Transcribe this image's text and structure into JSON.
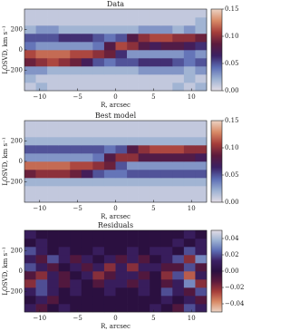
{
  "chart_data": [
    {
      "type": "heatmap",
      "title": "Data",
      "xlabel": "R, arcsec",
      "ylabel": "LOSVD, km s⁻¹",
      "xlim": [
        -12,
        12
      ],
      "ylim": [
        -400,
        400
      ],
      "xticks": [
        {
          "value": -10,
          "label": "−10"
        },
        {
          "value": -5,
          "label": "−5"
        },
        0,
        5,
        10
      ],
      "yticks": [
        {
          "value": -200,
          "label": "−200"
        },
        0,
        200
      ],
      "xbins": [
        -12,
        -10.5,
        -9,
        -7.5,
        -6,
        -4.5,
        -3,
        -1.5,
        0,
        1.5,
        3,
        4.5,
        6,
        7.5,
        9,
        10.5,
        12
      ],
      "ybins": [
        -400,
        -320,
        -240,
        -160,
        -80,
        0,
        80,
        160,
        240,
        320,
        400
      ],
      "z": [
        [
          0.01,
          0.02,
          0.01,
          0.01,
          0.01,
          0.01,
          0.01,
          0.01,
          0.01,
          0.01,
          0.01,
          0.01,
          0.01,
          0.02,
          0.01,
          0.02
        ],
        [
          0.02,
          0.01,
          0.01,
          0.01,
          0.01,
          0.01,
          0.01,
          0.01,
          0.01,
          0.01,
          0.01,
          0.01,
          0.01,
          0.01,
          0.02,
          0.01
        ],
        [
          0.03,
          0.03,
          0.02,
          0.02,
          0.02,
          0.02,
          0.02,
          0.02,
          0.02,
          0.02,
          0.03,
          0.03,
          0.03,
          0.03,
          0.02,
          0.03
        ],
        [
          0.09,
          0.1,
          0.11,
          0.1,
          0.09,
          0.07,
          0.05,
          0.04,
          0.05,
          0.05,
          0.06,
          0.06,
          0.06,
          0.05,
          0.04,
          0.05
        ],
        [
          0.11,
          0.12,
          0.12,
          0.12,
          0.11,
          0.11,
          0.1,
          0.09,
          0.06,
          0.03,
          0.03,
          0.03,
          0.03,
          0.03,
          0.04,
          0.03
        ],
        [
          0.04,
          0.03,
          0.03,
          0.03,
          0.03,
          0.03,
          0.04,
          0.08,
          0.11,
          0.1,
          0.08,
          0.07,
          0.08,
          0.08,
          0.07,
          0.06
        ],
        [
          0.05,
          0.05,
          0.05,
          0.06,
          0.06,
          0.06,
          0.05,
          0.04,
          0.05,
          0.08,
          0.1,
          0.11,
          0.11,
          0.1,
          0.1,
          0.09
        ],
        [
          0.02,
          0.03,
          0.03,
          0.02,
          0.02,
          0.02,
          0.02,
          0.02,
          0.02,
          0.02,
          0.03,
          0.03,
          0.03,
          0.02,
          0.03,
          0.02
        ],
        [
          0.01,
          0.01,
          0.01,
          0.01,
          0.01,
          0.01,
          0.01,
          0.01,
          0.01,
          0.01,
          0.01,
          0.01,
          0.01,
          0.01,
          0.01,
          0.02
        ],
        [
          0.01,
          0.01,
          0.01,
          0.01,
          0.01,
          0.01,
          0.01,
          0.01,
          0.01,
          0.01,
          0.01,
          0.01,
          0.01,
          0.01,
          0.01,
          0.01
        ]
      ],
      "clim": [
        0,
        0.15
      ],
      "cticks": [
        {
          "value": 0,
          "label": "0.00"
        },
        {
          "value": 0.05,
          "label": "0.05"
        },
        {
          "value": 0.1,
          "label": "0.10"
        },
        {
          "value": 0.15,
          "label": "0.15"
        }
      ],
      "colors": [
        "#e3dde6",
        "#9cb1d2",
        "#5c6cb4",
        "#3b2063",
        "#5b1a3d",
        "#a53d3a",
        "#d88a66",
        "#ecd3c4"
      ]
    },
    {
      "type": "heatmap",
      "title": "Best model",
      "xlabel": "R, arcsec",
      "ylabel": "LOSVD, km s⁻¹",
      "xlim": [
        -12,
        12
      ],
      "ylim": [
        -400,
        400
      ],
      "xticks": [
        {
          "value": -10,
          "label": "−10"
        },
        {
          "value": -5,
          "label": "−5"
        },
        0,
        5,
        10
      ],
      "yticks": [
        {
          "value": -200,
          "label": "−200"
        },
        0,
        200
      ],
      "xbins": [
        -12,
        -10.5,
        -9,
        -7.5,
        -6,
        -4.5,
        -3,
        -1.5,
        0,
        1.5,
        3,
        4.5,
        6,
        7.5,
        9,
        10.5,
        12
      ],
      "ybins": [
        -400,
        -320,
        -240,
        -160,
        -80,
        0,
        80,
        160,
        240,
        320,
        400
      ],
      "z": [
        [
          0.01,
          0.01,
          0.01,
          0.01,
          0.01,
          0.01,
          0.01,
          0.01,
          0.01,
          0.01,
          0.01,
          0.01,
          0.01,
          0.01,
          0.01,
          0.01
        ],
        [
          0.01,
          0.01,
          0.01,
          0.01,
          0.01,
          0.01,
          0.01,
          0.01,
          0.01,
          0.01,
          0.01,
          0.01,
          0.01,
          0.01,
          0.01,
          0.01
        ],
        [
          0.02,
          0.02,
          0.02,
          0.02,
          0.02,
          0.02,
          0.02,
          0.02,
          0.02,
          0.02,
          0.02,
          0.02,
          0.02,
          0.02,
          0.02,
          0.02
        ],
        [
          0.09,
          0.1,
          0.1,
          0.1,
          0.09,
          0.07,
          0.05,
          0.04,
          0.04,
          0.05,
          0.05,
          0.05,
          0.05,
          0.05,
          0.05,
          0.05
        ],
        [
          0.12,
          0.12,
          0.12,
          0.12,
          0.11,
          0.11,
          0.1,
          0.09,
          0.05,
          0.03,
          0.03,
          0.03,
          0.03,
          0.03,
          0.03,
          0.03
        ],
        [
          0.03,
          0.03,
          0.03,
          0.03,
          0.03,
          0.03,
          0.04,
          0.08,
          0.1,
          0.1,
          0.08,
          0.08,
          0.08,
          0.08,
          0.08,
          0.07
        ],
        [
          0.05,
          0.05,
          0.05,
          0.05,
          0.05,
          0.05,
          0.05,
          0.04,
          0.05,
          0.08,
          0.1,
          0.11,
          0.11,
          0.11,
          0.1,
          0.1
        ],
        [
          0.02,
          0.02,
          0.02,
          0.02,
          0.02,
          0.02,
          0.02,
          0.02,
          0.02,
          0.02,
          0.02,
          0.02,
          0.02,
          0.02,
          0.02,
          0.02
        ],
        [
          0.01,
          0.01,
          0.01,
          0.01,
          0.01,
          0.01,
          0.01,
          0.01,
          0.01,
          0.01,
          0.01,
          0.01,
          0.01,
          0.01,
          0.01,
          0.01
        ],
        [
          0.01,
          0.01,
          0.01,
          0.01,
          0.01,
          0.01,
          0.01,
          0.01,
          0.01,
          0.01,
          0.01,
          0.01,
          0.01,
          0.01,
          0.01,
          0.01
        ]
      ],
      "clim": [
        0,
        0.15
      ],
      "cticks": [
        {
          "value": 0,
          "label": "0.00"
        },
        {
          "value": 0.05,
          "label": "0.05"
        },
        {
          "value": 0.1,
          "label": "0.10"
        },
        {
          "value": 0.15,
          "label": "0.15"
        }
      ],
      "colors": [
        "#e3dde6",
        "#9cb1d2",
        "#5c6cb4",
        "#3b2063",
        "#5b1a3d",
        "#a53d3a",
        "#d88a66",
        "#ecd3c4"
      ]
    },
    {
      "type": "heatmap",
      "title": "Residuals",
      "xlabel": "R, arcsec",
      "ylabel": "LOSVD, km s⁻¹",
      "xlim": [
        -12,
        12
      ],
      "ylim": [
        -400,
        400
      ],
      "xticks": [
        {
          "value": -10,
          "label": "−10"
        },
        {
          "value": -5,
          "label": "−5"
        },
        0,
        5,
        10
      ],
      "yticks": [
        {
          "value": -200,
          "label": "−200"
        },
        0,
        200
      ],
      "xbins": [
        -12,
        -10.5,
        -9,
        -7.5,
        -6,
        -4.5,
        -3,
        -1.5,
        0,
        1.5,
        3,
        4.5,
        6,
        7.5,
        9,
        10.5,
        12
      ],
      "ybins": [
        -400,
        -320,
        -240,
        -160,
        -80,
        0,
        80,
        160,
        240,
        320,
        400
      ],
      "z": [
        [
          0.01,
          -0.01,
          0,
          0.01,
          0,
          0,
          0,
          0,
          0,
          0,
          0,
          0.01,
          0,
          -0.01,
          0.02,
          0.01
        ],
        [
          0,
          0.01,
          -0.01,
          0,
          0,
          0,
          0,
          0,
          0,
          0,
          0,
          0,
          0.01,
          0,
          0.01,
          -0.01
        ],
        [
          0.01,
          0.02,
          0.01,
          0,
          0.01,
          0,
          0,
          0.01,
          0,
          0,
          0.01,
          0,
          0.02,
          0.01,
          -0.01,
          0.02
        ],
        [
          -0.02,
          0.02,
          0.01,
          -0.01,
          0.01,
          0,
          -0.01,
          0.01,
          0.01,
          -0.01,
          0.01,
          0,
          -0.01,
          0.01,
          0.03,
          -0.02
        ],
        [
          -0.01,
          -0.02,
          0.01,
          -0.01,
          0,
          0.01,
          -0.02,
          -0.01,
          0.01,
          0.01,
          -0.01,
          0,
          -0.02,
          0.02,
          -0.03,
          0.01
        ],
        [
          0.02,
          0.01,
          -0.01,
          0,
          0.01,
          -0.01,
          0.01,
          -0.02,
          0.01,
          -0.02,
          0.01,
          0.01,
          -0.01,
          -0.01,
          0.02,
          -0.01
        ],
        [
          0.01,
          -0.01,
          0.02,
          0.01,
          -0.01,
          0.01,
          0,
          0.01,
          -0.01,
          0.01,
          -0.01,
          0,
          0.01,
          0.02,
          -0.02,
          0.03
        ],
        [
          0.02,
          0.01,
          0,
          0.01,
          0,
          0,
          0.01,
          0,
          0,
          0.01,
          0,
          0.01,
          0.01,
          0,
          0.02,
          0.01
        ],
        [
          0,
          0.01,
          0,
          0,
          0,
          0,
          0,
          0,
          0,
          0,
          0,
          0,
          0,
          0.01,
          0,
          0.01
        ],
        [
          0.01,
          0,
          0,
          0,
          0,
          0,
          0,
          0,
          0,
          0,
          0,
          0,
          0,
          0,
          0.01,
          0
        ]
      ],
      "clim": [
        -0.05,
        0.05
      ],
      "cticks": [
        {
          "value": -0.04,
          "label": "−0.04"
        },
        {
          "value": -0.02,
          "label": "−0.02"
        },
        {
          "value": 0,
          "label": "0.00"
        },
        {
          "value": 0.02,
          "label": "0.02"
        },
        {
          "value": 0.04,
          "label": "0.04"
        }
      ],
      "colors": [
        "#ecd3c4",
        "#d88a66",
        "#a53d3a",
        "#5b1a3d",
        "#2b1040",
        "#3b2063",
        "#5c6cb4",
        "#9cb1d2",
        "#e3dde6"
      ]
    }
  ]
}
